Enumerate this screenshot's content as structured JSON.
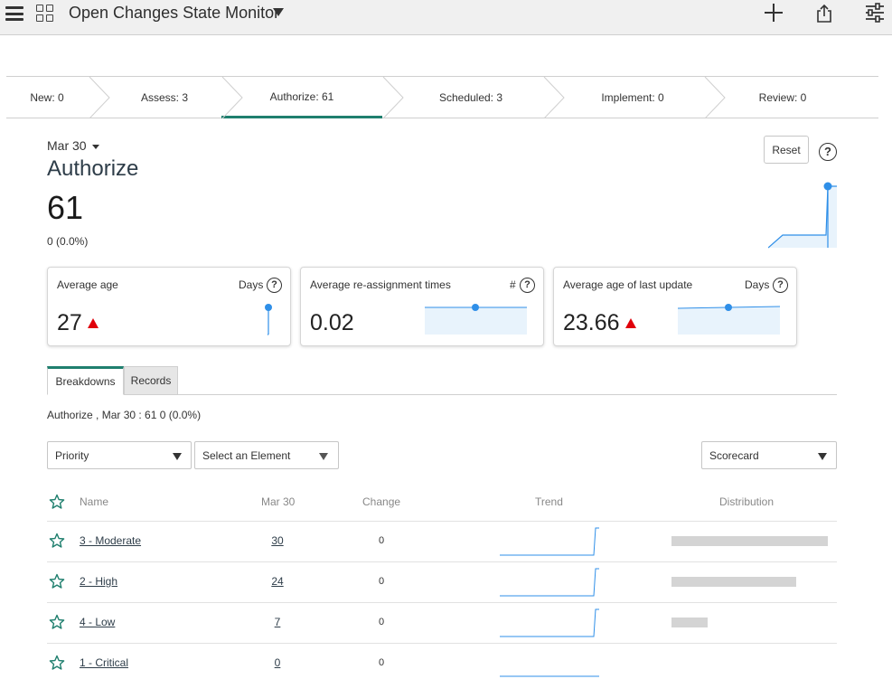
{
  "header": {
    "title": "Open Changes State Monitor",
    "icons": [
      "menu-icon",
      "grid-icon",
      "caret-down-icon",
      "plus-icon",
      "share-icon",
      "settings-icon"
    ]
  },
  "stages": [
    {
      "label": "New: 0"
    },
    {
      "label": "Assess: 3"
    },
    {
      "label": "Authorize: 61",
      "active": true
    },
    {
      "label": "Scheduled: 3"
    },
    {
      "label": "Implement: 0"
    },
    {
      "label": "Review: 0"
    }
  ],
  "indicator": {
    "date": "Mar 30",
    "title": "Authorize",
    "value": "61",
    "change": "0 (0.0%)",
    "reset_label": "Reset",
    "help": "?"
  },
  "cards": [
    {
      "title": "Average age",
      "unit": "Days",
      "value": "27",
      "trend": "up"
    },
    {
      "title": "Average re-assignment times",
      "unit": "#",
      "value": "0.02",
      "trend": "none"
    },
    {
      "title": "Average age of last update",
      "unit": "Days",
      "value": "23.66",
      "trend": "up"
    }
  ],
  "tabs": [
    {
      "label": "Breakdowns",
      "active": true
    },
    {
      "label": "Records",
      "active": false
    }
  ],
  "breakdown_summary": "Authorize , Mar 30 : 61 0 (0.0%)",
  "filters": {
    "breakdown": "Priority",
    "element": "Select an Element",
    "view": "Scorecard"
  },
  "table": {
    "columns": [
      "Name",
      "Mar 30",
      "Change",
      "Trend",
      "Distribution"
    ],
    "rows": [
      {
        "name": "3 - Moderate",
        "value": "30",
        "change": "0",
        "distribution": 30
      },
      {
        "name": "2 - High",
        "value": "24",
        "change": "0",
        "distribution": 24
      },
      {
        "name": "4 - Low",
        "value": "7",
        "change": "0",
        "distribution": 7
      },
      {
        "name": "1 - Critical",
        "value": "0",
        "change": "0",
        "distribution": 0
      }
    ]
  },
  "colors": {
    "accent": "#1f7f6e",
    "chart_line": "#2f8fe8",
    "chart_fill": "#e8f3fc",
    "alert": "#e0000a"
  }
}
